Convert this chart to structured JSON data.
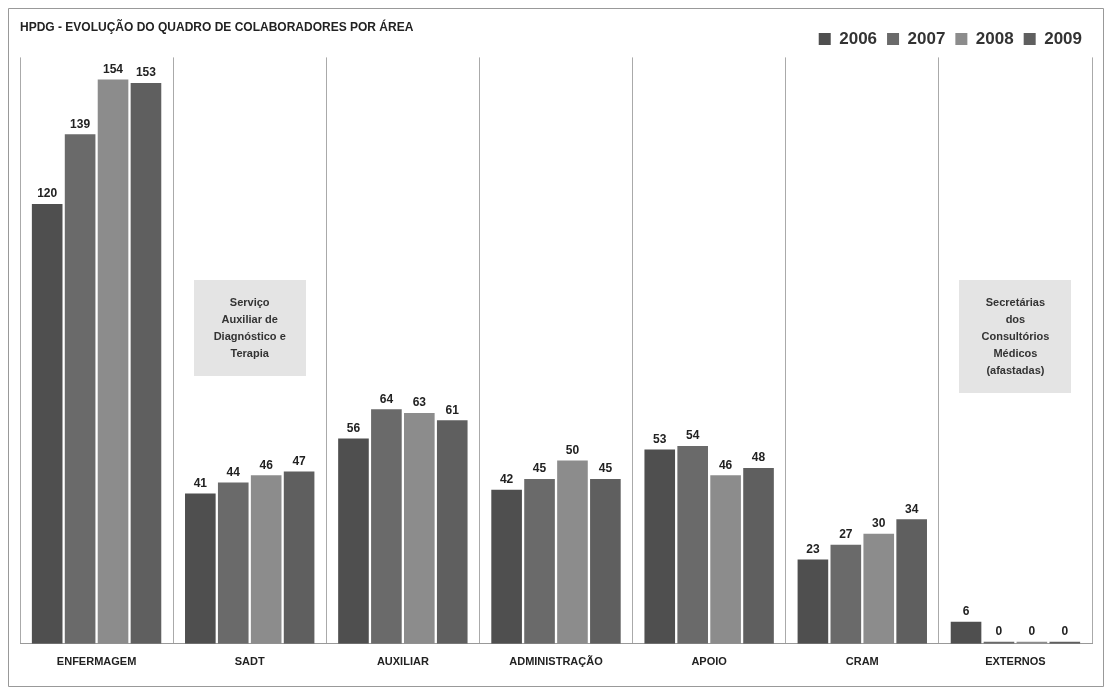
{
  "chart_data": {
    "type": "bar",
    "title": "HPDG - EVOLUÇÃO DO QUADRO DE COLABORADORES POR ÁREA",
    "categories": [
      "ENFERMAGEM",
      "SADT",
      "AUXILIAR",
      "ADMINISTRAÇÃO",
      "APOIO",
      "CRAM",
      "EXTERNOS"
    ],
    "series": [
      {
        "name": "2006",
        "color": "#4f4f4f",
        "values": [
          120,
          41,
          56,
          42,
          53,
          23,
          6
        ]
      },
      {
        "name": "2007",
        "color": "#6a6a6a",
        "values": [
          139,
          44,
          64,
          45,
          54,
          27,
          0
        ]
      },
      {
        "name": "2008",
        "color": "#8c8c8c",
        "values": [
          154,
          46,
          63,
          50,
          46,
          30,
          0
        ]
      },
      {
        "name": "2009",
        "color": "#5f5f5f",
        "values": [
          153,
          47,
          61,
          45,
          48,
          34,
          0
        ]
      }
    ],
    "data_labels": true,
    "grid": "x",
    "legend": "top right",
    "annotations": [
      "Serviço Auxiliar de Diagnóstico e Terapia",
      "Secretárias dos Consultórios Médicos (afastadas)"
    ]
  }
}
